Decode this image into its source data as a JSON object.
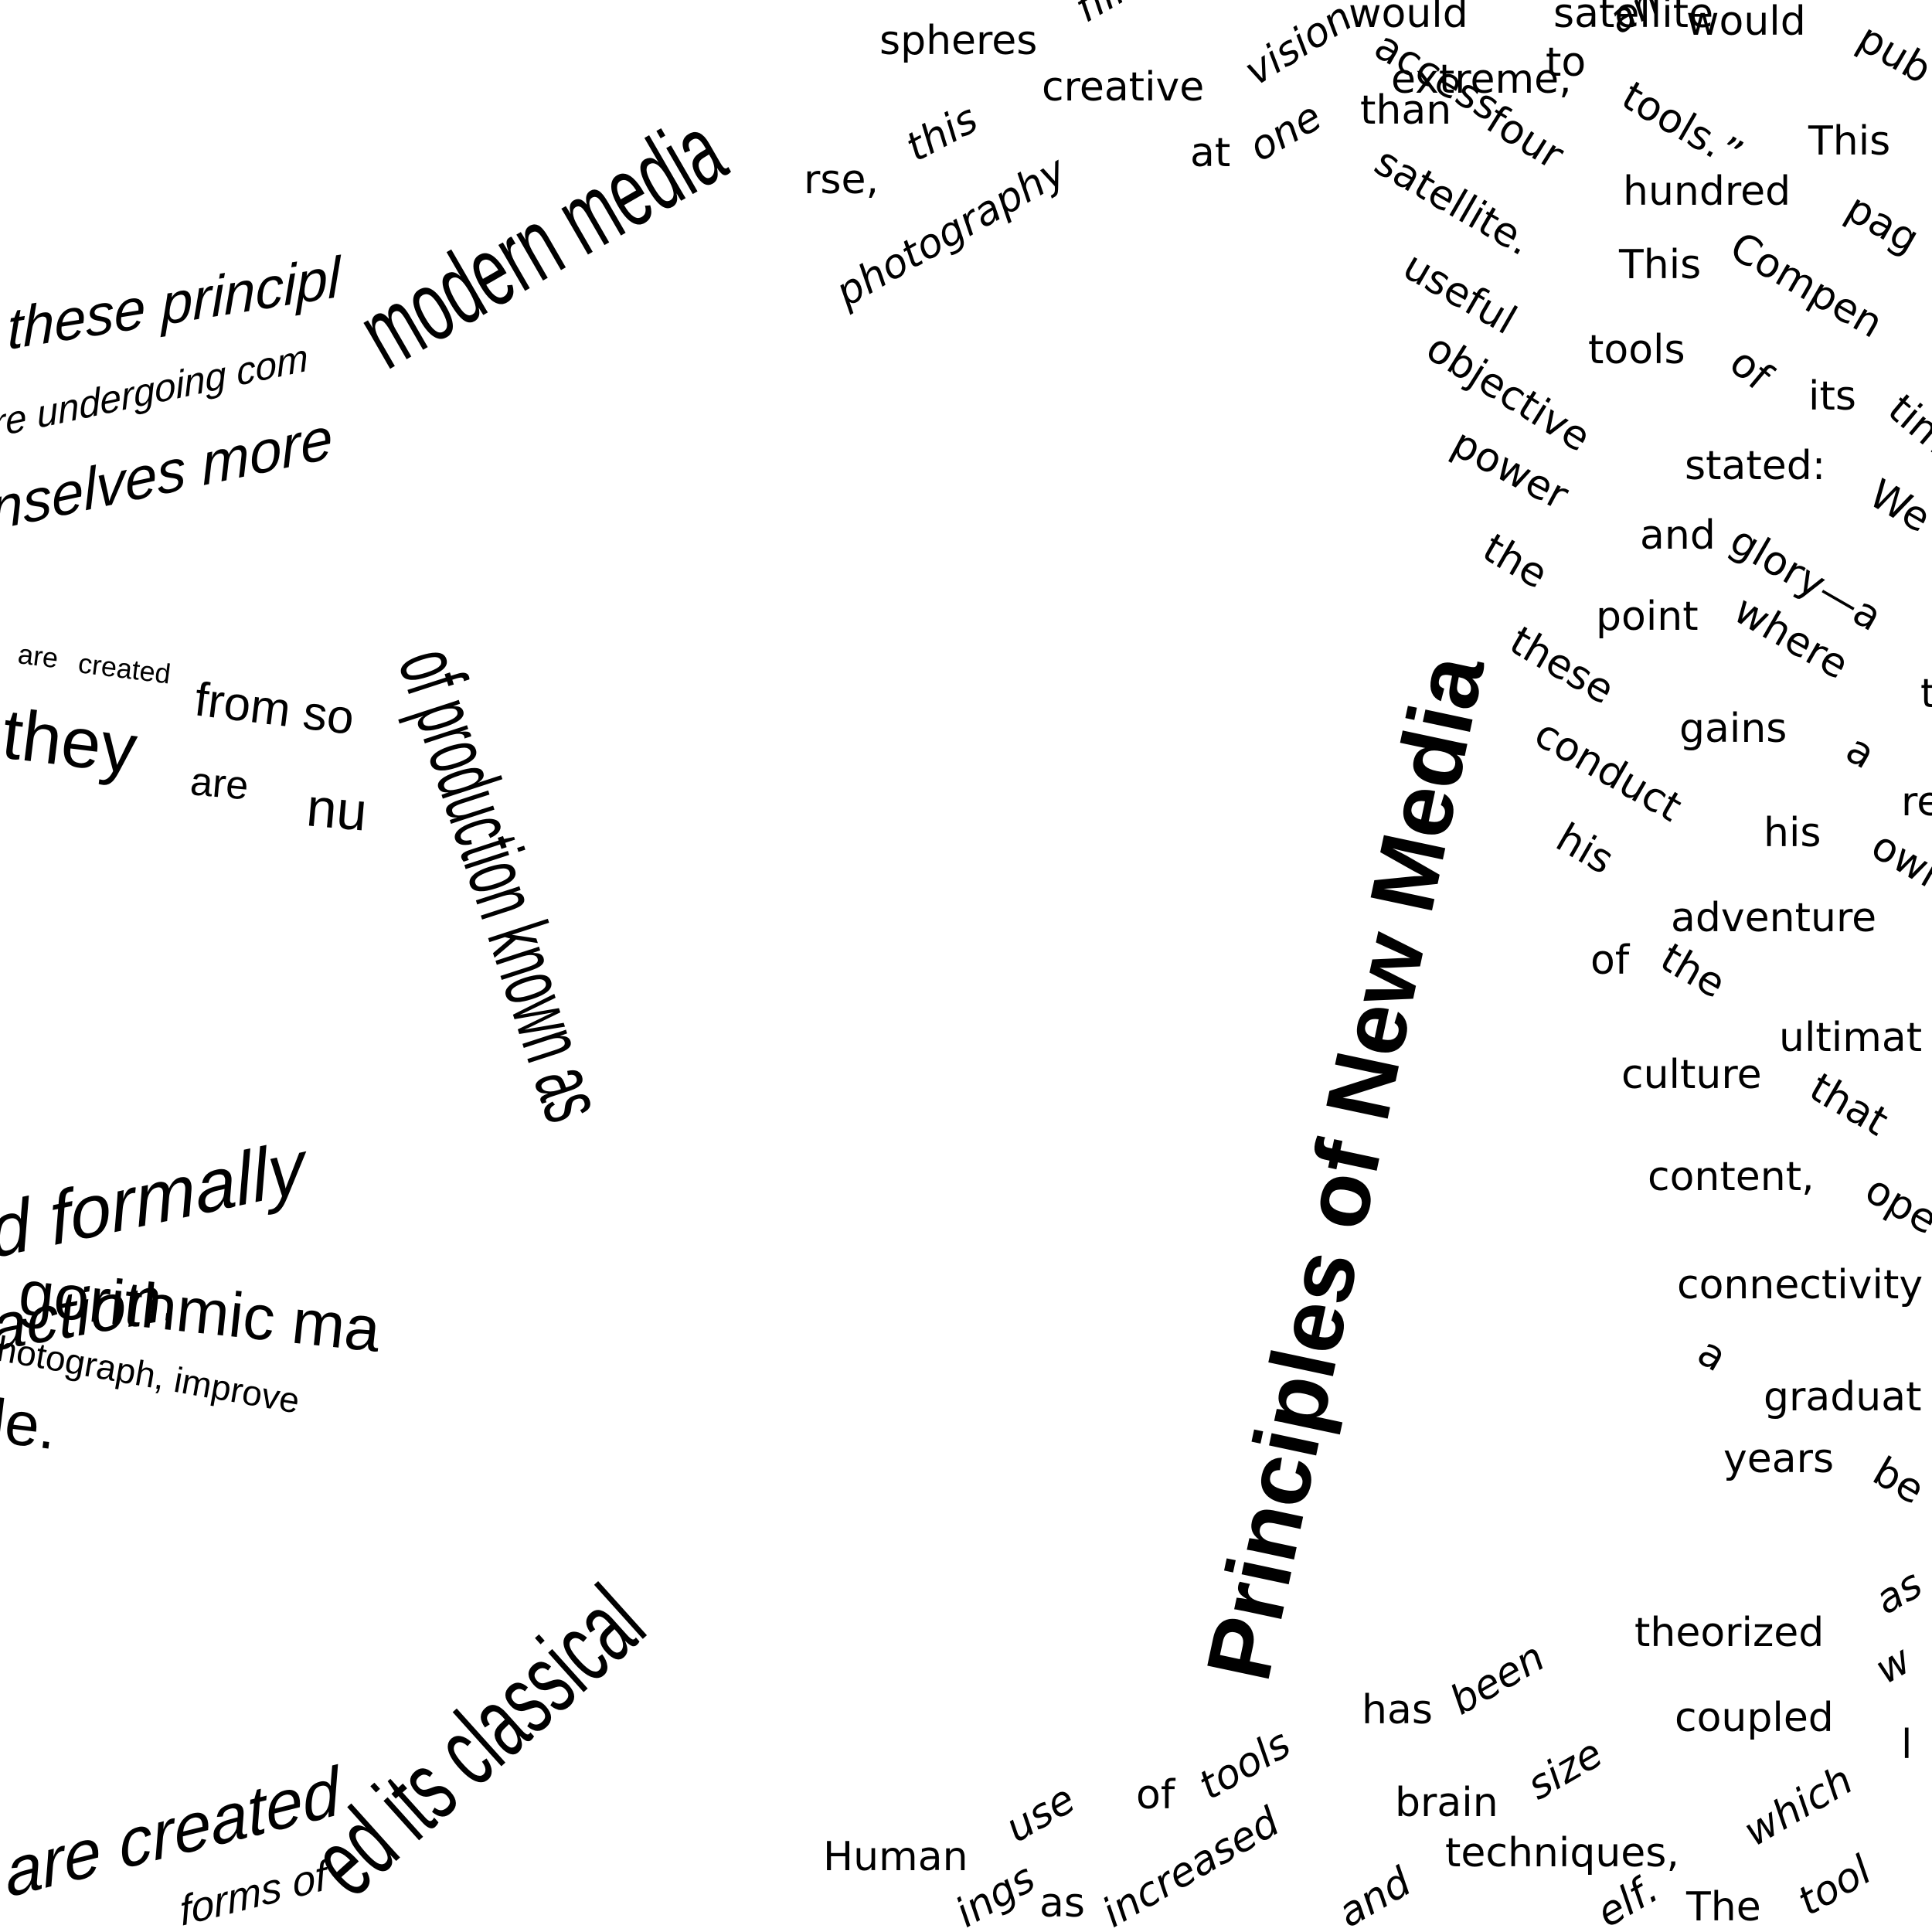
{
  "title": "Principles of New Media",
  "left_panel": {
    "line1": "these principl",
    "line2": "re undergoing com",
    "line3": "nselves more",
    "line4_a": "are",
    "line4_b": "created",
    "line4_c": "from so",
    "line5_a": "they",
    "line5_b": "are",
    "line5_c": "nu",
    "line6": "d formally",
    "line7": "gorithmic ma",
    "line8": "action.",
    "line9": "hotograph, improve",
    "line10": "le.",
    "line11": "are created",
    "line12_a": "forms of"
  },
  "arc_text": {
    "modern": "modern media",
    "production": "of production known as",
    "classical": "ed its classical"
  },
  "right_panel": {
    "words": [
      "spheres",
      "film",
      "would",
      "satellite",
      "would",
      "pub",
      "creative",
      "vision",
      "access",
      "to",
      "an",
      "extreme,",
      "tools.”",
      "This",
      "this",
      "than",
      "four",
      "rse,",
      "photography",
      "at",
      "one",
      "hundred",
      "pag",
      "satellite.",
      "This",
      "Compen",
      "useful",
      "tools",
      "of",
      "its",
      "tim",
      "objective",
      "stated:",
      "We",
      "power",
      "and",
      "glory—a",
      "the",
      "point",
      "where",
      "t",
      "these",
      "gains",
      "a",
      "re",
      "conduct",
      "his",
      "own",
      "his",
      "adventure",
      "of",
      "the",
      "ultimat",
      "culture",
      "that",
      "content,",
      "ope",
      "connectivity",
      "a",
      "graduat",
      "years",
      "be",
      "theorized",
      "as",
      "coupled",
      "w",
      "Human",
      "use",
      "of",
      "tools",
      "has",
      "been",
      "brain",
      "size",
      "which",
      "l",
      "techniques,",
      "ings",
      "as",
      "increased",
      "and",
      "elf.",
      "The",
      "tool"
    ]
  }
}
